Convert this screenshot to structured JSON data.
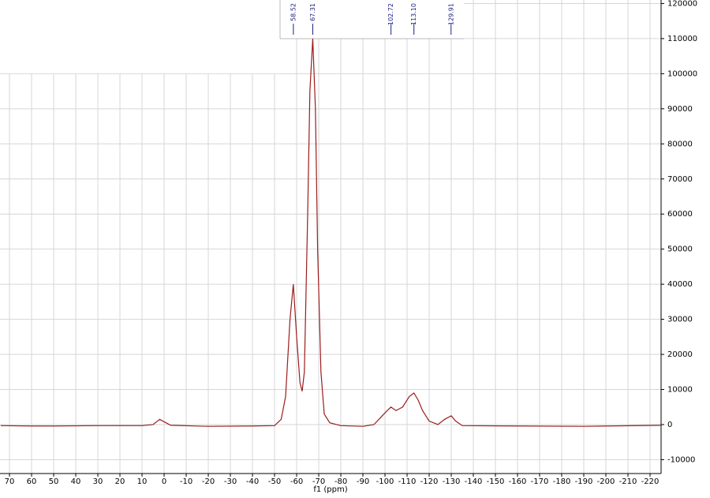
{
  "chart_data": {
    "type": "line",
    "xlabel": "f1 (ppm)",
    "xlim": [
      74.3,
      -225
    ],
    "ylim": [
      -13950,
      121000
    ],
    "xticks": [
      70,
      60,
      50,
      40,
      30,
      20,
      10,
      0,
      -10,
      -20,
      -30,
      -40,
      -50,
      -60,
      -70,
      -80,
      -90,
      -100,
      -110,
      -120,
      -130,
      -140,
      -150,
      -160,
      -170,
      -180,
      -190,
      -200,
      -210,
      -220
    ],
    "yticks": [
      120000,
      110000,
      100000,
      90000,
      80000,
      70000,
      60000,
      50000,
      40000,
      30000,
      20000,
      10000,
      0,
      -10000
    ],
    "grid": true,
    "series": [
      {
        "color": "#9b1c1c",
        "x": [
          74,
          60,
          50,
          30,
          10,
          5,
          2,
          0,
          -3,
          -20,
          -40,
          -50,
          -53,
          -55,
          -57,
          -58.5,
          -60,
          -61.5,
          -62.5,
          -63.5,
          -65,
          -66,
          -67.3,
          -68.5,
          -69.5,
          -71,
          -72.5,
          -75,
          -80,
          -90,
          -95,
          -98,
          -101,
          -102.7,
          -105,
          -108,
          -111,
          -113.1,
          -115,
          -117,
          -120,
          -124,
          -127,
          -130,
          -132,
          -135,
          -160,
          -190,
          -225
        ],
        "values": [
          -300,
          -400,
          -400,
          -300,
          -300,
          0,
          1500,
          800,
          -200,
          -500,
          -400,
          -300,
          1500,
          8000,
          30000,
          40000,
          25000,
          12000,
          9500,
          15000,
          60000,
          95000,
          110000,
          90000,
          50000,
          15000,
          3000,
          500,
          -300,
          -500,
          0,
          2000,
          4000,
          5000,
          4000,
          5000,
          8000,
          9000,
          7000,
          4000,
          1000,
          0,
          1500,
          2500,
          1000,
          -300,
          -400,
          -500,
          -200
        ]
      }
    ],
    "peaks": [
      {
        "value": -58.52,
        "label": "58.52"
      },
      {
        "value": -67.31,
        "label": "67.31"
      },
      {
        "value": -102.72,
        "label": "102.72"
      },
      {
        "value": -113.1,
        "label": "113.10"
      },
      {
        "value": -129.91,
        "label": "129.91"
      }
    ]
  }
}
